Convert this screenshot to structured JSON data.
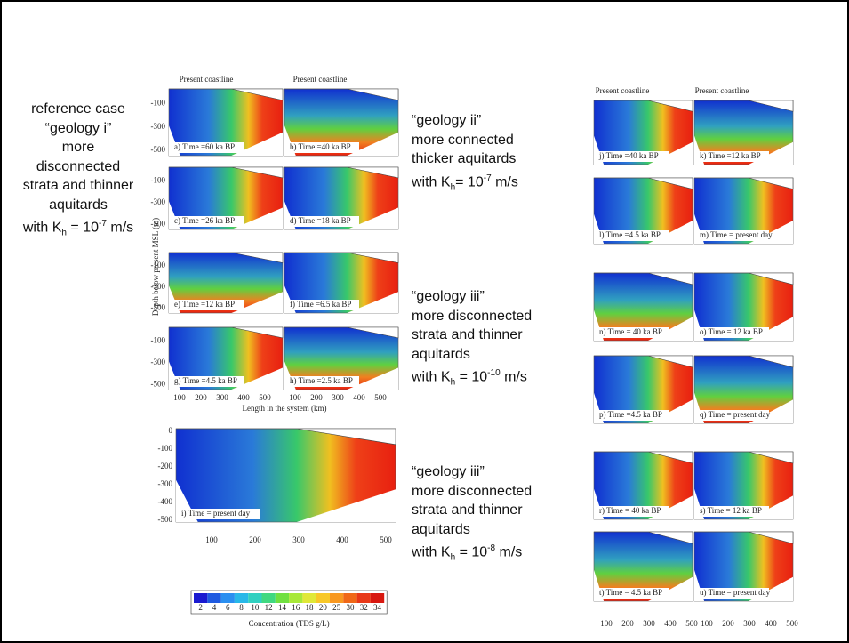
{
  "annotations": [
    {
      "lines": [
        "reference case",
        "“geology i”",
        "more",
        "disconnected",
        "strata and thinner",
        "aquitards",
        {
          "pre": "with K",
          "sub": "h",
          "mid": " = 10",
          "sup": "-7",
          "post": " m/s"
        }
      ]
    },
    {
      "lines": [
        "“geology ii”",
        "more connected",
        "thicker aquitards",
        {
          "pre": "with K",
          "sub": "h",
          "mid": "= 10",
          "sup": "-7",
          "post": " m/s"
        }
      ]
    },
    {
      "lines": [
        "“geology iii”",
        "more disconnected",
        "strata and thinner",
        "aquitards",
        {
          "pre": "with K",
          "sub": "h",
          "mid": " = 10",
          "sup": "-10",
          "post": " m/s"
        }
      ]
    },
    {
      "lines": [
        "“geology iii”",
        "more disconnected",
        "strata and thinner",
        "aquitards",
        {
          "pre": "with K",
          "sub": "h",
          "mid": " = 10",
          "sup": "-8",
          "post": " m/s"
        }
      ]
    }
  ],
  "coastline_label": "Present coastline",
  "panels": [
    "a) Time =60 ka BP",
    "b) Time =40 ka BP",
    "c) Time =26 ka BP",
    "d) Time =18 ka BP",
    "e) Time =12 ka BP",
    "f) Time =6.5 ka BP",
    "g) Time =4.5 ka BP",
    "h) Time =2.5 ka BP",
    "i) Time = present day",
    "j) Time =40 ka BP",
    "k) Time =12 ka BP",
    "l) Time =4.5 ka BP",
    "m) Time = present day",
    "n) Time = 40 ka BP",
    "o) Time = 12 ka BP",
    "p) Time =4.5 ka BP",
    "q) Time = present day",
    "r) Time = 40 ka BP",
    "s) Time = 12 ka BP",
    "t) Time = 4.5 ka BP",
    "u) Time = present day"
  ],
  "depth_ticks": [
    "-100",
    "-300",
    "-500"
  ],
  "big_depth_ticks": [
    "0",
    "-100",
    "-200",
    "-300",
    "-400",
    "-500"
  ],
  "length_ticks": [
    "100",
    "200",
    "300",
    "400",
    "500"
  ],
  "big_length_ticks": [
    "100",
    "200",
    "300",
    "400",
    "500"
  ],
  "y_axis_label": "Depth below present MSL (m)",
  "x_axis_label": "Length in the system (km)",
  "colorbar_ticks": [
    "2",
    "4",
    "6",
    "8",
    "10",
    "12",
    "14",
    "16",
    "18",
    "20",
    "25",
    "30",
    "32",
    "34"
  ],
  "colorbar_label": "Concentration (TDS g/L)"
}
